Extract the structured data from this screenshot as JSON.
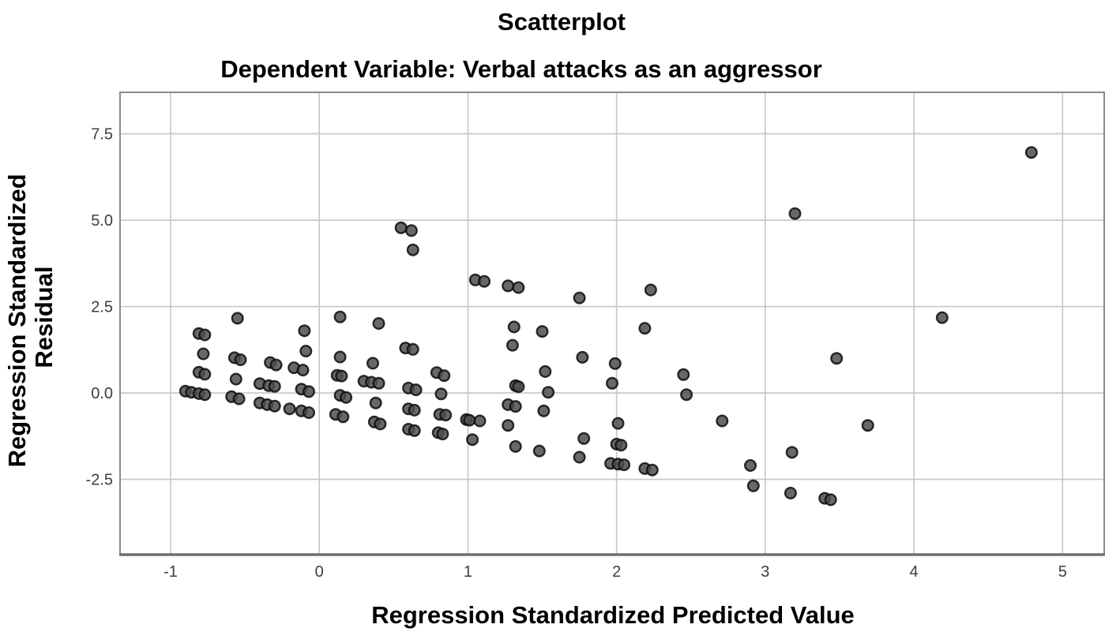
{
  "header": {
    "title": "Scatterplot",
    "subtitle": "Dependent Variable: Verbal attacks as an aggressor"
  },
  "colors": {
    "background": "#ffffff",
    "grid": "#c6c6c6",
    "frame": "#8a8a8a",
    "axis_line": "#6e6e6e",
    "marker_fill": "#4d4d4f",
    "marker_stroke": "#0d0d0d",
    "tick_text": "#3d3d3d",
    "title_text": "#000000"
  },
  "chart_data": {
    "type": "scatter",
    "title": "Scatterplot",
    "subtitle": "Dependent Variable: Verbal attacks as an aggressor",
    "xlabel": "Regression Standardized Predicted Value",
    "ylabel": "Regression Standardized Residual",
    "ylabel_lines": [
      "Regression Standardized",
      "Residual"
    ],
    "xlim": [
      -1.34,
      5.28
    ],
    "ylim": [
      -4.68,
      8.7
    ],
    "x_ticks": [
      -1,
      0,
      1,
      2,
      3,
      4,
      5
    ],
    "x_tick_labels": [
      "-1",
      "0",
      "1",
      "2",
      "3",
      "4",
      "5"
    ],
    "y_ticks": [
      7.5,
      5.0,
      2.5,
      0.0,
      -2.5
    ],
    "y_tick_labels": [
      "7.5",
      "5.0",
      "2.5",
      "0.0",
      "-2.5"
    ],
    "grid": true,
    "legend": "none",
    "marker": {
      "shape": "circle",
      "radius": 6.8,
      "fill": "#4d4d4f",
      "stroke": "#0d0d0d"
    },
    "points": [
      [
        -0.55,
        2.16
      ],
      [
        -0.81,
        1.72
      ],
      [
        -0.77,
        1.68
      ],
      [
        -0.78,
        1.13
      ],
      [
        -0.57,
        1.02
      ],
      [
        -0.53,
        0.96
      ],
      [
        -0.33,
        0.88
      ],
      [
        -0.29,
        0.81
      ],
      [
        -0.81,
        0.6
      ],
      [
        -0.77,
        0.54
      ],
      [
        -0.56,
        0.4
      ],
      [
        -0.4,
        0.27
      ],
      [
        -0.34,
        0.21
      ],
      [
        -0.3,
        0.19
      ],
      [
        -0.9,
        0.05
      ],
      [
        -0.86,
        0.02
      ],
      [
        -0.81,
        -0.02
      ],
      [
        -0.77,
        -0.05
      ],
      [
        -0.59,
        -0.11
      ],
      [
        -0.54,
        -0.17
      ],
      [
        -0.4,
        -0.29
      ],
      [
        -0.35,
        -0.34
      ],
      [
        -0.3,
        -0.38
      ],
      [
        -0.2,
        -0.46
      ],
      [
        -0.12,
        -0.52
      ],
      [
        -0.07,
        -0.57
      ],
      [
        -0.1,
        1.8
      ],
      [
        -0.09,
        1.21
      ],
      [
        -0.17,
        0.73
      ],
      [
        -0.11,
        0.66
      ],
      [
        -0.12,
        0.11
      ],
      [
        -0.07,
        0.04
      ],
      [
        0.14,
        2.2
      ],
      [
        0.4,
        2.01
      ],
      [
        0.14,
        1.04
      ],
      [
        0.36,
        0.86
      ],
      [
        0.12,
        0.51
      ],
      [
        0.15,
        0.49
      ],
      [
        0.3,
        0.34
      ],
      [
        0.35,
        0.31
      ],
      [
        0.4,
        0.28
      ],
      [
        0.14,
        -0.07
      ],
      [
        0.18,
        -0.13
      ],
      [
        0.38,
        -0.29
      ],
      [
        0.11,
        -0.62
      ],
      [
        0.16,
        -0.69
      ],
      [
        0.37,
        -0.84
      ],
      [
        0.41,
        -0.9
      ],
      [
        0.55,
        4.78
      ],
      [
        0.62,
        4.7
      ],
      [
        0.63,
        4.14
      ],
      [
        0.58,
        1.3
      ],
      [
        0.63,
        1.26
      ],
      [
        0.79,
        0.59
      ],
      [
        0.84,
        0.5
      ],
      [
        0.6,
        0.14
      ],
      [
        0.65,
        0.09
      ],
      [
        0.82,
        -0.03
      ],
      [
        0.6,
        -0.46
      ],
      [
        0.64,
        -0.5
      ],
      [
        0.81,
        -0.62
      ],
      [
        0.85,
        -0.64
      ],
      [
        0.6,
        -1.05
      ],
      [
        0.64,
        -1.09
      ],
      [
        0.8,
        -1.15
      ],
      [
        0.83,
        -1.19
      ],
      [
        1.05,
        3.27
      ],
      [
        1.11,
        3.23
      ],
      [
        0.99,
        -0.77
      ],
      [
        1.01,
        -0.79
      ],
      [
        1.08,
        -0.81
      ],
      [
        1.03,
        -1.35
      ],
      [
        1.27,
        3.1
      ],
      [
        1.34,
        3.05
      ],
      [
        1.31,
        1.91
      ],
      [
        1.3,
        1.38
      ],
      [
        1.32,
        0.21
      ],
      [
        1.34,
        0.18
      ],
      [
        1.27,
        -0.34
      ],
      [
        1.32,
        -0.39
      ],
      [
        1.27,
        -0.94
      ],
      [
        1.32,
        -1.55
      ],
      [
        1.5,
        1.78
      ],
      [
        1.52,
        0.62
      ],
      [
        1.54,
        0.02
      ],
      [
        1.51,
        -0.52
      ],
      [
        1.48,
        -1.68
      ],
      [
        1.75,
        2.75
      ],
      [
        1.77,
        1.03
      ],
      [
        1.99,
        0.85
      ],
      [
        1.97,
        0.28
      ],
      [
        1.78,
        -1.32
      ],
      [
        1.75,
        -1.86
      ],
      [
        2.01,
        -0.88
      ],
      [
        2.0,
        -1.48
      ],
      [
        2.03,
        -1.51
      ],
      [
        1.96,
        -2.04
      ],
      [
        2.01,
        -2.06
      ],
      [
        2.05,
        -2.08
      ],
      [
        2.23,
        2.98
      ],
      [
        2.19,
        1.87
      ],
      [
        2.19,
        -2.19
      ],
      [
        2.24,
        -2.23
      ],
      [
        2.45,
        0.53
      ],
      [
        2.47,
        -0.05
      ],
      [
        2.71,
        -0.81
      ],
      [
        2.9,
        -2.1
      ],
      [
        2.92,
        -2.69
      ],
      [
        3.2,
        5.19
      ],
      [
        3.18,
        -1.72
      ],
      [
        3.17,
        -2.9
      ],
      [
        3.4,
        -3.05
      ],
      [
        3.44,
        -3.09
      ],
      [
        3.48,
        1.0
      ],
      [
        3.69,
        -0.94
      ],
      [
        4.19,
        2.18
      ],
      [
        4.79,
        6.96
      ]
    ]
  }
}
